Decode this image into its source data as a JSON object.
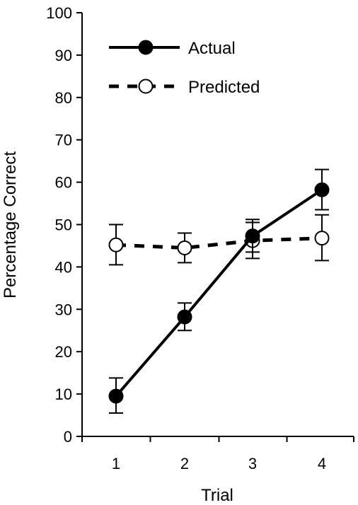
{
  "chart_data": {
    "type": "line",
    "title": "",
    "xlabel": "Trial",
    "ylabel": "Percentage Correct",
    "categories": [
      "1",
      "2",
      "3",
      "4"
    ],
    "ylim": [
      0,
      100
    ],
    "yticks": [
      "0",
      "10",
      "20",
      "30",
      "40",
      "50",
      "60",
      "70",
      "80",
      "90",
      "100"
    ],
    "grid": false,
    "legend_position": "top-left",
    "series": [
      {
        "name": "Actual",
        "style": "solid",
        "marker": "filled-circle",
        "values": [
          9.5,
          28.2,
          47.3,
          58.2
        ],
        "error_low": [
          5.5,
          25.0,
          43.5,
          53.5
        ],
        "error_high": [
          13.8,
          31.5,
          51.2,
          63.0
        ]
      },
      {
        "name": "Predicted",
        "style": "dashed",
        "marker": "open-circle",
        "values": [
          45.2,
          44.5,
          46.2,
          46.8
        ],
        "error_low": [
          40.5,
          41.0,
          42.0,
          41.5
        ],
        "error_high": [
          50.0,
          48.0,
          50.5,
          52.3
        ]
      }
    ]
  }
}
